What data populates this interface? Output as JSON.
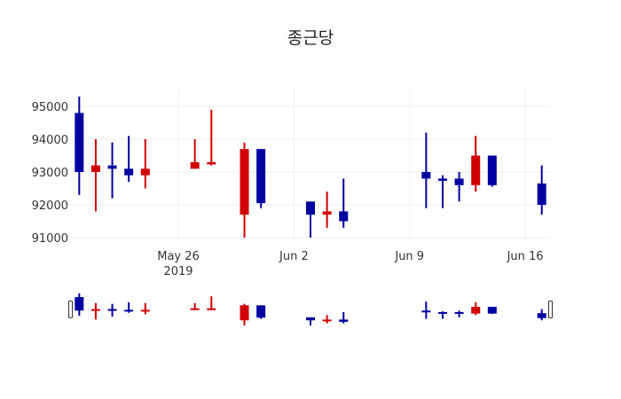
{
  "chart_data": {
    "type": "candlestick",
    "title": "종근당",
    "xlabel": "",
    "ylabel": "",
    "ylim": [
      90950,
      95300
    ],
    "yticks": [
      91000,
      92000,
      93000,
      94000,
      95000
    ],
    "xticks": [
      {
        "date": "2019-05-26",
        "label": "May 26",
        "sublabel": "2019"
      },
      {
        "date": "2019-06-02",
        "label": "Jun 2",
        "sublabel": ""
      },
      {
        "date": "2019-06-09",
        "label": "Jun 9",
        "sublabel": ""
      },
      {
        "date": "2019-06-16",
        "label": "Jun 16",
        "sublabel": ""
      }
    ],
    "xrange": [
      "2019-05-19T12:00",
      "2019-06-17T12:00"
    ],
    "grid": true,
    "rangeslider": true,
    "colors": {
      "increasing": "#d10000",
      "decreasing": "#0000a0",
      "grid": "#eeeeee"
    },
    "candles": [
      {
        "date": "2019-05-20",
        "open": 94800,
        "high": 95300,
        "low": 92300,
        "close": 93000
      },
      {
        "date": "2019-05-21",
        "open": 93000,
        "high": 94000,
        "low": 91800,
        "close": 93200
      },
      {
        "date": "2019-05-22",
        "open": 93200,
        "high": 93900,
        "low": 92200,
        "close": 93100
      },
      {
        "date": "2019-05-23",
        "open": 93100,
        "high": 94100,
        "low": 92700,
        "close": 92900
      },
      {
        "date": "2019-05-24",
        "open": 92900,
        "high": 94000,
        "low": 92500,
        "close": 93100
      },
      {
        "date": "2019-05-27",
        "open": 93100,
        "high": 94000,
        "low": 93100,
        "close": 93300
      },
      {
        "date": "2019-05-28",
        "open": 93250,
        "high": 94900,
        "low": 93200,
        "close": 93300
      },
      {
        "date": "2019-05-30",
        "open": 91700,
        "high": 93900,
        "low": 91000,
        "close": 93700
      },
      {
        "date": "2019-05-31",
        "open": 93700,
        "high": 93700,
        "low": 91900,
        "close": 92050
      },
      {
        "date": "2019-06-03",
        "open": 92100,
        "high": 92100,
        "low": 91000,
        "close": 91700
      },
      {
        "date": "2019-06-04",
        "open": 91700,
        "high": 92400,
        "low": 91300,
        "close": 91800
      },
      {
        "date": "2019-06-05",
        "open": 91800,
        "high": 92800,
        "low": 91300,
        "close": 91500
      },
      {
        "date": "2019-06-10",
        "open": 93000,
        "high": 94200,
        "low": 91900,
        "close": 92800
      },
      {
        "date": "2019-06-11",
        "open": 92800,
        "high": 92900,
        "low": 91900,
        "close": 92750
      },
      {
        "date": "2019-06-12",
        "open": 92800,
        "high": 93000,
        "low": 92100,
        "close": 92600
      },
      {
        "date": "2019-06-13",
        "open": 92600,
        "high": 94100,
        "low": 92400,
        "close": 93500
      },
      {
        "date": "2019-06-14",
        "open": 93500,
        "high": 93500,
        "low": 92550,
        "close": 92600
      },
      {
        "date": "2019-06-17",
        "open": 92650,
        "high": 93200,
        "low": 91700,
        "close": 92000
      }
    ]
  }
}
